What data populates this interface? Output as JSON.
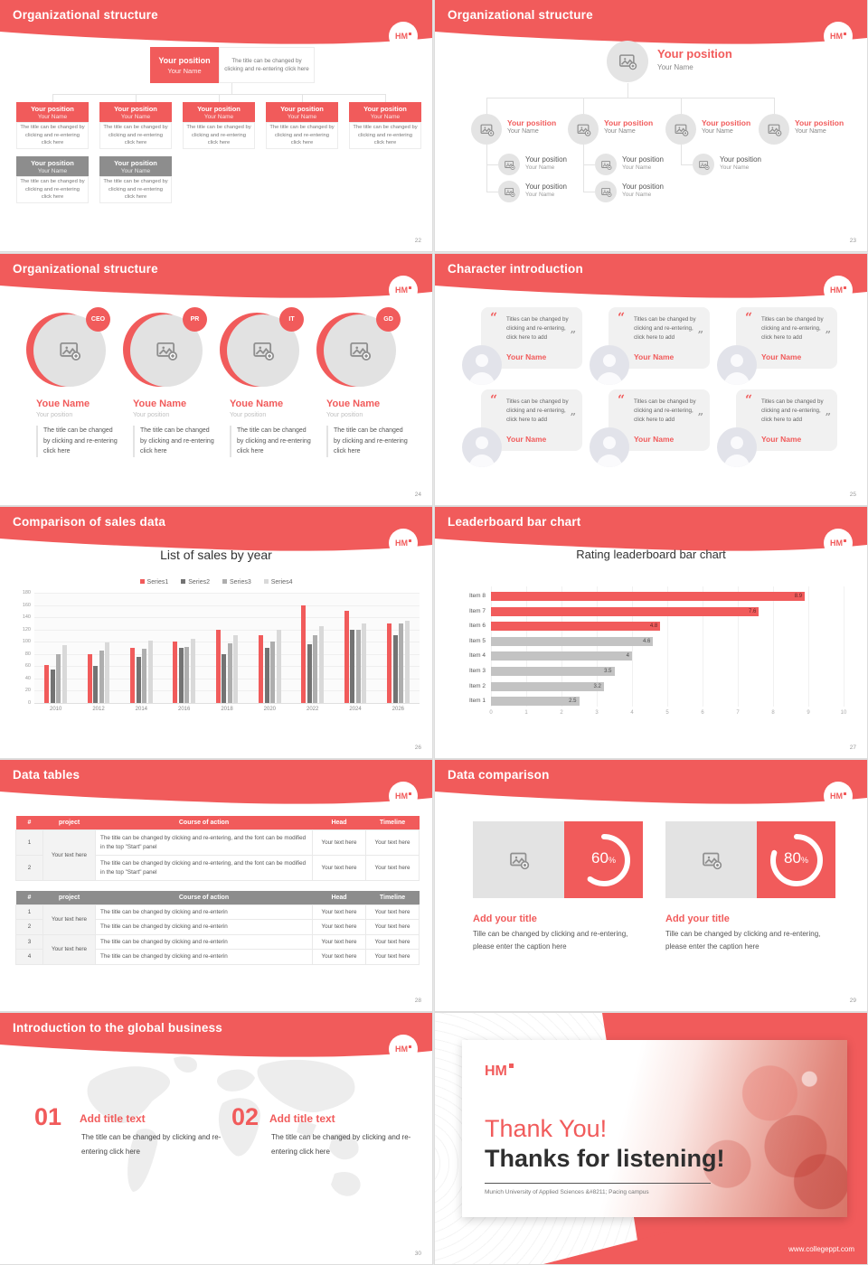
{
  "accent": {
    "red": "#f15b5b",
    "gray_header": "#8d8d8d"
  },
  "common": {
    "logo": "HM",
    "position": "Your position",
    "name": "Your Name",
    "desc": "The title can be changed by clicking and re-entering click here"
  },
  "slides": {
    "s22": {
      "title": "Organizational structure",
      "page": "22"
    },
    "s23": {
      "title": "Organizational structure",
      "page": "23"
    },
    "s24": {
      "title": "Organizational structure",
      "page": "24",
      "roles": [
        "CEO",
        "PR",
        "IT",
        "GD"
      ],
      "name": "Youe Name",
      "position": "Your position",
      "desc": "The title can be changed by clicking and re-entering click here"
    },
    "s25": {
      "title": "Character introduction",
      "page": "25",
      "quote": "Titles can be changed by clicking and re-entering, click here to add",
      "name": "Your Name"
    },
    "s26": {
      "title": "Comparison of sales data",
      "page": "26"
    },
    "s27": {
      "title": "Leaderboard bar chart",
      "page": "27"
    },
    "s28": {
      "title": "Data tables",
      "page": "28",
      "headers": [
        "#",
        "project",
        "Course of action",
        "Head",
        "Timeline"
      ],
      "t1_nums": [
        "1",
        "2"
      ],
      "t2_nums": [
        "1",
        "2",
        "3",
        "4"
      ],
      "t1_course": "The title can be changed by clicking and re-entering, and the font can be modified in the top \"Start\" panel",
      "t2_course": "The title can be changed by clicking and re-enterin",
      "project": "Your text here",
      "cell": "Your text here"
    },
    "s29": {
      "title": "Data comparison",
      "page": "29",
      "values": [
        "60",
        "80"
      ],
      "pct": "%",
      "card_title": "Add your title",
      "caption": "Tille can be changed by clicking and re-entering, please enter the caption here"
    },
    "s30": {
      "title": "Introduction to the global business",
      "page": "30",
      "num1": "01",
      "num2": "02",
      "item_title": "Add title text",
      "item_desc": "The title can be changed by clicking and re-entering click here"
    },
    "s31": {
      "logo": "HM",
      "line1": "Thank You!",
      "line2": "Thanks for listening!",
      "subtitle": "Munich University of Applied Sciences &#8211; Pacing campus",
      "url": "www.collegeppt.com"
    }
  },
  "chart_data": [
    {
      "type": "bar",
      "title": "List of sales by year",
      "legend_position": "top",
      "grid": true,
      "categories": [
        "2010",
        "2012",
        "2014",
        "2016",
        "2018",
        "2020",
        "2022",
        "2024",
        "2026"
      ],
      "series": [
        {
          "name": "Series1",
          "color": "#f15b5b",
          "values": [
            62,
            79,
            90,
            101,
            120,
            110,
            160,
            150,
            130
          ]
        },
        {
          "name": "Series2",
          "color": "#737373",
          "values": [
            55,
            61,
            75,
            90,
            80,
            90,
            96,
            120,
            110
          ]
        },
        {
          "name": "Series3",
          "color": "#aeaeae",
          "values": [
            80,
            86,
            88,
            92,
            98,
            101,
            110,
            120,
            130
          ]
        },
        {
          "name": "Series4",
          "color": "#d9d9d9",
          "values": [
            95,
            99,
            102,
            105,
            110,
            120,
            126,
            130,
            135
          ]
        }
      ],
      "ylim": [
        0,
        180
      ],
      "ytick_step": 20
    },
    {
      "type": "bar",
      "orientation": "horizontal",
      "title": "Rating leaderboard bar chart",
      "categories": [
        "Item 8",
        "Item 7",
        "Item 6",
        "Item 5",
        "Item 4",
        "Item 3",
        "Item 2",
        "Item 1"
      ],
      "values": [
        8.9,
        7.6,
        4.8,
        4.6,
        4,
        3.5,
        3.2,
        2.5
      ],
      "value_labels": [
        "8.9",
        "7.6",
        "4.8",
        "4.6",
        "4",
        "3.5",
        "3.2",
        "2.5"
      ],
      "colors": [
        "#f15b5b",
        "#f15b5b",
        "#f15b5b",
        "#c3c3c3",
        "#c3c3c3",
        "#c3c3c3",
        "#c3c3c3",
        "#c3c3c3"
      ],
      "xlim": [
        0,
        10
      ],
      "xtick_step": 1
    }
  ]
}
